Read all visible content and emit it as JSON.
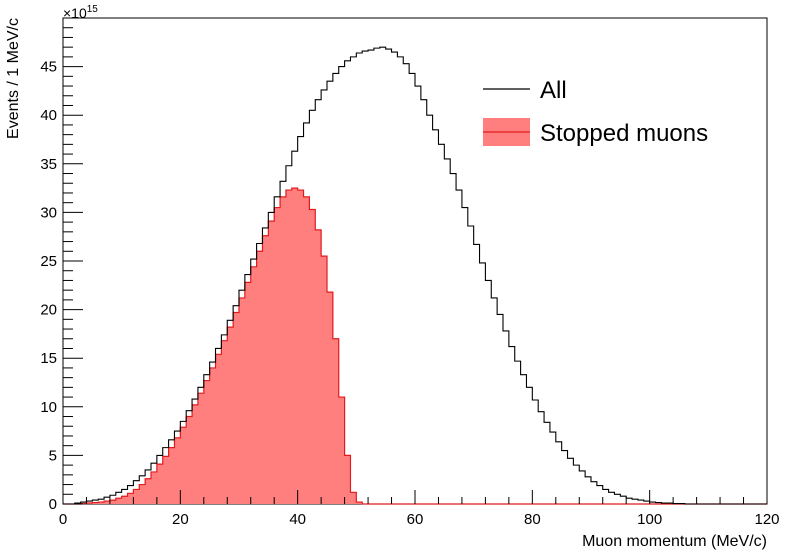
{
  "chart_data": {
    "type": "histogram",
    "xlabel": "Muon momentum (MeV/c)",
    "ylabel": "Events / 1 MeV/c",
    "y_exponent": "×10",
    "y_exponent_power": "15",
    "xlim": [
      0,
      120
    ],
    "ylim": [
      0,
      50
    ],
    "x_ticks": [
      0,
      20,
      40,
      60,
      80,
      100,
      120
    ],
    "x_tick_labels": [
      "0",
      "20",
      "40",
      "60",
      "80",
      "100",
      "120"
    ],
    "y_ticks": [
      0,
      5,
      10,
      15,
      20,
      25,
      30,
      35,
      40,
      45
    ],
    "y_tick_labels": [
      "0",
      "5",
      "10",
      "15",
      "20",
      "25",
      "30",
      "35",
      "40",
      "45"
    ],
    "bin_width": 1,
    "grid": false,
    "legend_position": "top-right",
    "series": [
      {
        "name": "All",
        "style": "step-line",
        "color": "#000000",
        "x_start": 0,
        "values": [
          0,
          0,
          0.1,
          0.2,
          0.3,
          0.4,
          0.5,
          0.7,
          0.9,
          1.2,
          1.5,
          1.9,
          2.4,
          2.9,
          3.5,
          4.2,
          5.0,
          5.8,
          6.6,
          7.5,
          8.5,
          9.6,
          10.8,
          12.0,
          13.3,
          14.6,
          16.0,
          17.4,
          18.9,
          20.4,
          22.0,
          23.6,
          25.2,
          26.8,
          28.4,
          30.0,
          31.6,
          33.2,
          34.8,
          36.3,
          37.8,
          39.2,
          40.5,
          41.6,
          42.6,
          43.5,
          44.3,
          45.0,
          45.6,
          46.0,
          46.4,
          46.6,
          46.7,
          46.9,
          47.0,
          46.8,
          46.5,
          46.0,
          45.3,
          44.3,
          43.0,
          41.6,
          40.0,
          38.5,
          37.0,
          35.5,
          34.0,
          32.3,
          30.5,
          28.6,
          26.7,
          24.8,
          23.0,
          21.2,
          19.5,
          17.8,
          16.2,
          14.7,
          13.3,
          12.0,
          10.7,
          9.5,
          8.4,
          7.4,
          6.4,
          5.5,
          4.7,
          4.0,
          3.4,
          2.8,
          2.3,
          1.9,
          1.5,
          1.2,
          1.0,
          0.8,
          0.6,
          0.5,
          0.4,
          0.3,
          0.2,
          0.15,
          0.1,
          0.1,
          0.05,
          0.05,
          0,
          0,
          0,
          0,
          0,
          0,
          0,
          0,
          0,
          0,
          0,
          0,
          0,
          0
        ]
      },
      {
        "name": "Stopped muons",
        "style": "filled-step",
        "color": "#ff7f7f",
        "line_color": "#e31a1c",
        "x_start": 0,
        "values": [
          0,
          0,
          0,
          0.05,
          0.1,
          0.15,
          0.2,
          0.3,
          0.4,
          0.6,
          0.8,
          1.1,
          1.5,
          2.0,
          2.6,
          3.3,
          4.1,
          4.9,
          5.8,
          6.8,
          7.9,
          9.0,
          10.2,
          11.4,
          12.7,
          14.0,
          15.4,
          16.8,
          18.2,
          19.7,
          21.2,
          22.8,
          24.4,
          26.0,
          27.6,
          29.1,
          30.5,
          31.6,
          32.3,
          32.5,
          32.3,
          31.6,
          30.3,
          28.2,
          25.5,
          21.8,
          17.0,
          11.0,
          5.0,
          1.2,
          0.2,
          0,
          0,
          0,
          0,
          0,
          0,
          0,
          0,
          0,
          0,
          0,
          0,
          0,
          0,
          0,
          0,
          0,
          0,
          0,
          0,
          0,
          0,
          0,
          0,
          0,
          0,
          0,
          0,
          0,
          0,
          0,
          0,
          0,
          0,
          0,
          0,
          0,
          0,
          0,
          0,
          0,
          0,
          0,
          0,
          0,
          0,
          0,
          0,
          0,
          0,
          0,
          0,
          0,
          0,
          0,
          0,
          0,
          0,
          0,
          0,
          0,
          0,
          0,
          0,
          0,
          0,
          0,
          0,
          0
        ]
      }
    ]
  }
}
